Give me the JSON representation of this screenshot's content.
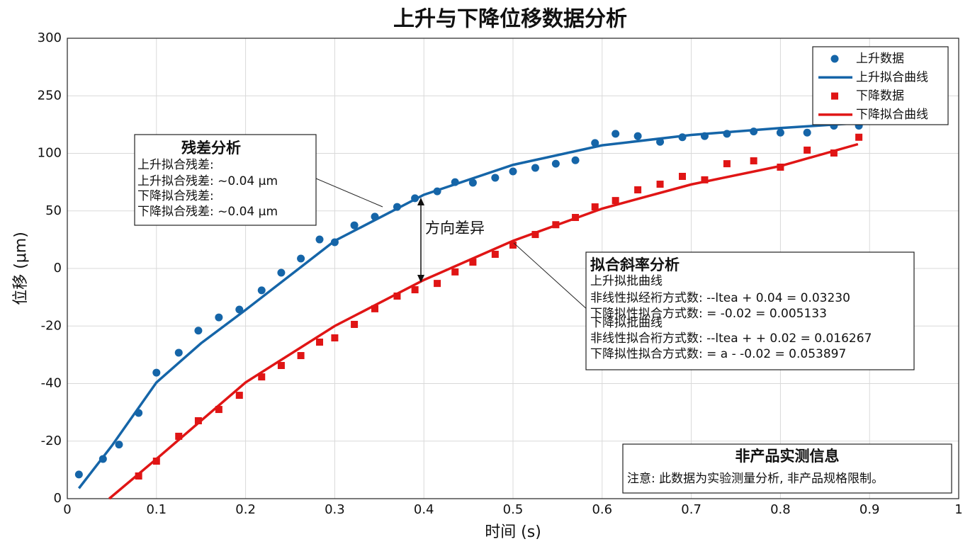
{
  "chart_data": {
    "type": "scatter",
    "title": "上升与下降位移数据分析",
    "x_label": "时间 (s)",
    "y_label": "位移 (μm)",
    "xlim": [
      0,
      1
    ],
    "xticks": [
      0,
      0.1,
      0.2,
      0.3,
      0.4,
      0.5,
      0.6,
      0.7,
      0.8,
      0.9,
      1
    ],
    "ylim": [
      -100,
      300
    ],
    "yticks": [
      {
        "value": -100,
        "label": "0"
      },
      {
        "value": -50,
        "label": "-20"
      },
      {
        "value": 0,
        "label": "-40"
      },
      {
        "value": 50,
        "label": "-20"
      },
      {
        "value": 100,
        "label": "0"
      },
      {
        "value": 150,
        "label": "50"
      },
      {
        "value": 200,
        "label": "100"
      },
      250,
      300
    ],
    "grid": true,
    "legend": "upper right",
    "series": [
      {
        "name": "上升数据",
        "type": "scatter",
        "marker": "circle",
        "color": "#1565a8",
        "x": [
          0.013,
          0.04,
          0.058,
          0.08,
          0.1,
          0.125,
          0.147,
          0.17,
          0.193,
          0.218,
          0.24,
          0.262,
          0.283,
          0.3,
          0.322,
          0.345,
          0.37,
          0.39,
          0.415,
          0.435,
          0.455,
          0.48,
          0.5,
          0.525,
          0.548,
          0.57,
          0.592,
          0.615,
          0.64,
          0.665,
          0.69,
          0.715,
          0.74,
          0.77,
          0.8,
          0.83,
          0.86,
          0.888
        ],
        "values": [
          -79,
          -65.5,
          -53,
          -25.5,
          9.5,
          26.8,
          46,
          57.5,
          64.3,
          81,
          96.3,
          108.6,
          125.2,
          122.8,
          137.5,
          145,
          153.5,
          161,
          167,
          175,
          174.5,
          178.8,
          184.3,
          187.4,
          191,
          194,
          209,
          217,
          215,
          210,
          214,
          215,
          217,
          219,
          218,
          218,
          224,
          224
        ]
      },
      {
        "name": "上升拟合曲线",
        "type": "line",
        "color": "#1565a8",
        "x": [
          0.013,
          0.05,
          0.1,
          0.15,
          0.2,
          0.3,
          0.4,
          0.5,
          0.6,
          0.7,
          0.8,
          0.9
        ],
        "values": [
          -91,
          -54,
          1,
          35,
          64,
          124,
          164,
          190,
          207,
          216,
          222,
          227
        ]
      },
      {
        "name": "下降数据",
        "type": "scatter",
        "marker": "square",
        "color": "#e01515",
        "x": [
          0.08,
          0.1,
          0.125,
          0.147,
          0.17,
          0.193,
          0.218,
          0.24,
          0.262,
          0.283,
          0.3,
          0.322,
          0.345,
          0.37,
          0.39,
          0.415,
          0.435,
          0.455,
          0.48,
          0.5,
          0.525,
          0.548,
          0.57,
          0.592,
          0.615,
          0.64,
          0.665,
          0.69,
          0.715,
          0.74,
          0.77,
          0.8,
          0.83,
          0.86,
          0.888
        ],
        "values": [
          -80.3,
          -67.4,
          -45.8,
          -32.3,
          -22.5,
          -10.2,
          5.8,
          15.7,
          24.3,
          36,
          39.7,
          51.4,
          65,
          76,
          81.5,
          87,
          97,
          105.5,
          112.3,
          120.3,
          129.5,
          138,
          144.3,
          153.5,
          159,
          168.3,
          173.2,
          180,
          177,
          191,
          193.5,
          188,
          202.8,
          200.3,
          214
        ]
      },
      {
        "name": "下降拟合曲线",
        "type": "line",
        "color": "#e01515",
        "x": [
          0.047,
          0.1,
          0.2,
          0.3,
          0.4,
          0.5,
          0.6,
          0.7,
          0.8,
          0.887
        ],
        "values": [
          -100,
          -65.5,
          1,
          50,
          90,
          124,
          152,
          173,
          189,
          208
        ]
      }
    ],
    "arrow_label": "方向差异",
    "residual_box": {
      "title": "残差分析",
      "lines": [
        "上升拟合残差:",
        "上升拟合残差: ~0.04 μm",
        "下降拟合残差:",
        "下降拟合残差: ~0.04 μm"
      ]
    },
    "slope_box": {
      "title": "拟合斜率分析",
      "lines": [
        "上升拟批曲线",
        "非线性拟经裄方式数: --ltea + 0.04 = 0.03230",
        "下降拟性拟合方式数: = -0.02 = 0.005133",
        "下降拟批曲线",
        "非线性拟合裄方式数: --ltea + + 0.02 = 0.016267",
        "下降拟性拟合方式数: = a - -0.02 = 0.053897"
      ]
    },
    "info_box": {
      "title": "非产品实测信息",
      "note": "注意: 此数据为实验测量分析, 非产品规格限制。"
    }
  }
}
